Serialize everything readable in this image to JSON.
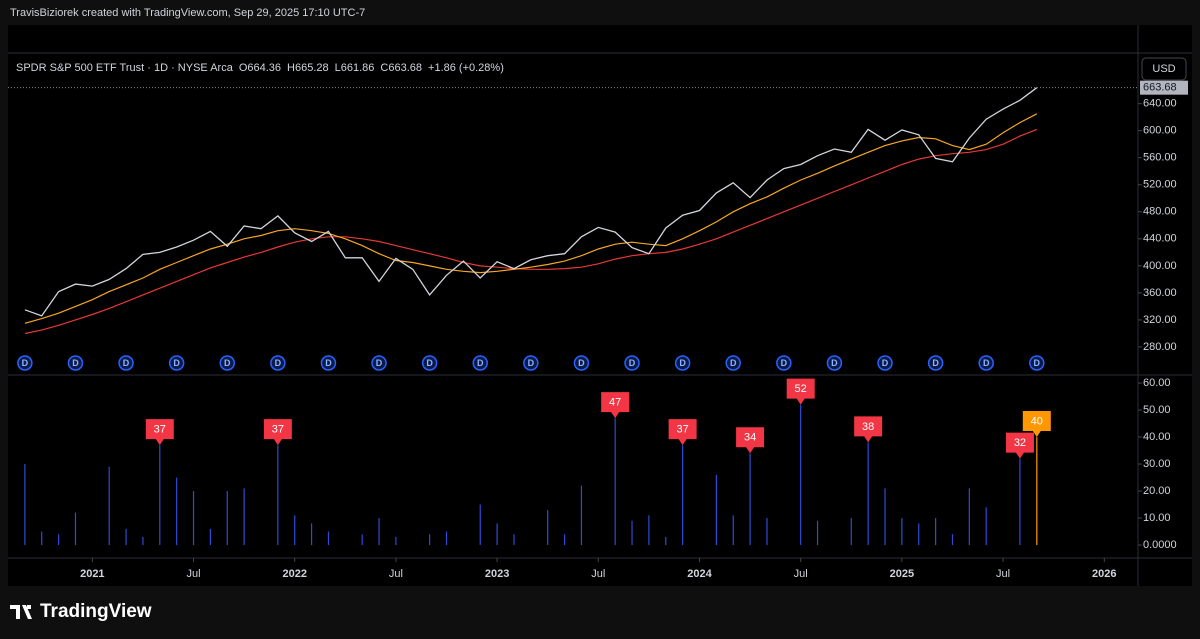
{
  "header": {
    "credit": "TravisBiziorek created with TradingView.com, Sep 29, 2025 17:10 UTC-7"
  },
  "footer": {
    "logo": "TradingView"
  },
  "chart_data": [
    {
      "type": "line",
      "title": "SPDR S&P 500 ETF Trust · 1D · NYSE Arca",
      "ohlc": [
        {
          "label": "O",
          "value": 664.36
        },
        {
          "label": "H",
          "value": 665.28
        },
        {
          "label": "L",
          "value": 661.86
        },
        {
          "label": "C",
          "value": 663.68
        }
      ],
      "change": "+1.86 (+0.28%)",
      "currency": "USD",
      "last_price": 663.68,
      "x": [
        "2020-09",
        "2020-10",
        "2020-11",
        "2020-12",
        "2021-01",
        "2021-02",
        "2021-03",
        "2021-04",
        "2021-05",
        "2021-06",
        "2021-07",
        "2021-08",
        "2021-09",
        "2021-10",
        "2021-11",
        "2021-12",
        "2022-01",
        "2022-02",
        "2022-03",
        "2022-04",
        "2022-05",
        "2022-06",
        "2022-07",
        "2022-08",
        "2022-09",
        "2022-10",
        "2022-11",
        "2022-12",
        "2023-01",
        "2023-02",
        "2023-03",
        "2023-04",
        "2023-05",
        "2023-06",
        "2023-07",
        "2023-08",
        "2023-09",
        "2023-10",
        "2023-11",
        "2023-12",
        "2024-01",
        "2024-02",
        "2024-03",
        "2024-04",
        "2024-05",
        "2024-06",
        "2024-07",
        "2024-08",
        "2024-09",
        "2024-10",
        "2024-11",
        "2024-12",
        "2025-01",
        "2025-02",
        "2025-03",
        "2025-04",
        "2025-05",
        "2025-06",
        "2025-07",
        "2025-08",
        "2025-09"
      ],
      "series": [
        {
          "color": "#e53935",
          "values": [
            300,
            305,
            312,
            320,
            328,
            337,
            347,
            357,
            367,
            377,
            387,
            397,
            405,
            413,
            420,
            428,
            435,
            440,
            443,
            443,
            440,
            436,
            430,
            424,
            418,
            412,
            405,
            400,
            398,
            396,
            395,
            395,
            396,
            398,
            403,
            410,
            415,
            418,
            420,
            425,
            432,
            440,
            450,
            460,
            470,
            480,
            490,
            500,
            510,
            520,
            530,
            540,
            550,
            558,
            563,
            566,
            568,
            572,
            580,
            592,
            602
          ]
        },
        {
          "color": "#f5a623",
          "values": [
            315,
            322,
            330,
            340,
            350,
            362,
            372,
            382,
            395,
            405,
            415,
            425,
            432,
            440,
            445,
            452,
            455,
            452,
            448,
            440,
            430,
            418,
            408,
            405,
            400,
            395,
            392,
            390,
            392,
            395,
            398,
            402,
            407,
            415,
            425,
            432,
            435,
            432,
            430,
            440,
            452,
            465,
            480,
            492,
            502,
            515,
            527,
            537,
            548,
            558,
            568,
            578,
            585,
            590,
            588,
            578,
            572,
            580,
            597,
            612,
            625
          ]
        },
        {
          "color": "#d1d4dc",
          "values": [
            335,
            326,
            362,
            373,
            370,
            380,
            396,
            417,
            420,
            428,
            438,
            451,
            429,
            459,
            455,
            474,
            449,
            436,
            451,
            412,
            412,
            377,
            411,
            395,
            357,
            386,
            407,
            382,
            406,
            396,
            409,
            415,
            418,
            443,
            457,
            450,
            427,
            418,
            456,
            475,
            482,
            508,
            523,
            501,
            527,
            544,
            550,
            563,
            573,
            568,
            602,
            586,
            601,
            594,
            559,
            554,
            589,
            617,
            632,
            645,
            663.68
          ]
        }
      ],
      "dividends": {
        "label": "D",
        "x": [
          "2020-09",
          "2020-12",
          "2021-03",
          "2021-06",
          "2021-09",
          "2021-12",
          "2022-03",
          "2022-06",
          "2022-09",
          "2022-12",
          "2023-03",
          "2023-06",
          "2023-09",
          "2023-12",
          "2024-03",
          "2024-06",
          "2024-09",
          "2024-12",
          "2025-03",
          "2025-06",
          "2025-09"
        ]
      },
      "xlim": [
        "2020-08",
        "2026-03"
      ],
      "xticks": [
        {
          "value": "2021-01",
          "label": "2021"
        },
        {
          "value": "2021-07",
          "label": "Jul"
        },
        {
          "value": "2022-01",
          "label": "2022"
        },
        {
          "value": "2022-07",
          "label": "Jul"
        },
        {
          "value": "2023-01",
          "label": "2023"
        },
        {
          "value": "2023-07",
          "label": "Jul"
        },
        {
          "value": "2024-01",
          "label": "2024"
        },
        {
          "value": "2024-07",
          "label": "Jul"
        },
        {
          "value": "2025-01",
          "label": "2025"
        },
        {
          "value": "2025-07",
          "label": "Jul"
        },
        {
          "value": "2026-01",
          "label": "2026"
        }
      ],
      "ylim": [
        240,
        715
      ],
      "yticks": [
        {
          "value": 280,
          "label": "280.00"
        },
        {
          "value": 320,
          "label": "320.00"
        },
        {
          "value": 360,
          "label": "360.00"
        },
        {
          "value": 400,
          "label": "400.00"
        },
        {
          "value": 440,
          "label": "440.00"
        },
        {
          "value": 480,
          "label": "480.00"
        },
        {
          "value": 520,
          "label": "520.00"
        },
        {
          "value": 560,
          "label": "560.00"
        },
        {
          "value": 600,
          "label": "600.00"
        },
        {
          "value": 640,
          "label": "640.00"
        }
      ]
    },
    {
      "type": "spikes",
      "spikes": {
        "color": "#2f4bd8",
        "x": [
          "2020-09",
          "2020-10",
          "2020-11",
          "2020-12",
          "2021-02",
          "2021-03",
          "2021-04",
          "2021-06",
          "2021-07",
          "2021-08",
          "2021-09",
          "2021-10",
          "2022-01",
          "2022-02",
          "2022-03",
          "2022-05",
          "2022-06",
          "2022-07",
          "2022-09",
          "2022-10",
          "2022-12",
          "2023-01",
          "2023-02",
          "2023-04",
          "2023-05",
          "2023-06",
          "2023-09",
          "2023-10",
          "2023-11",
          "2024-02",
          "2024-03",
          "2024-05",
          "2024-08",
          "2024-10",
          "2024-12",
          "2025-01",
          "2025-02",
          "2025-03",
          "2025-04",
          "2025-05",
          "2025-06"
        ],
        "values": [
          30,
          5,
          4,
          12,
          29,
          6,
          3,
          25,
          20,
          6,
          20,
          21,
          11,
          8,
          5,
          4,
          10,
          3,
          4,
          5,
          15,
          8,
          4,
          13,
          4,
          22,
          9,
          11,
          3,
          26,
          11,
          10,
          9,
          10,
          21,
          10,
          8,
          10,
          4,
          21,
          14
        ]
      },
      "flags": {
        "x": [
          "2021-05",
          "2021-12",
          "2023-08",
          "2023-12",
          "2024-04",
          "2024-07",
          "2024-11",
          "2025-08",
          "2025-09"
        ],
        "values": [
          37,
          37,
          47,
          37,
          34,
          52,
          38,
          32,
          40
        ],
        "colors": [
          "#f23645",
          "#f23645",
          "#f23645",
          "#f23645",
          "#f23645",
          "#f23645",
          "#f23645",
          "#f23645",
          "#ff9800"
        ]
      },
      "ylim": [
        -4.8,
        62.6
      ],
      "yticks": [
        {
          "value": 0,
          "label": "0.0000"
        },
        {
          "value": 10,
          "label": "10.00"
        },
        {
          "value": 20,
          "label": "20.00"
        },
        {
          "value": 30,
          "label": "30.00"
        },
        {
          "value": 40,
          "label": "40.00"
        },
        {
          "value": 50,
          "label": "50.00"
        },
        {
          "value": 60,
          "label": "60.00"
        }
      ]
    }
  ]
}
